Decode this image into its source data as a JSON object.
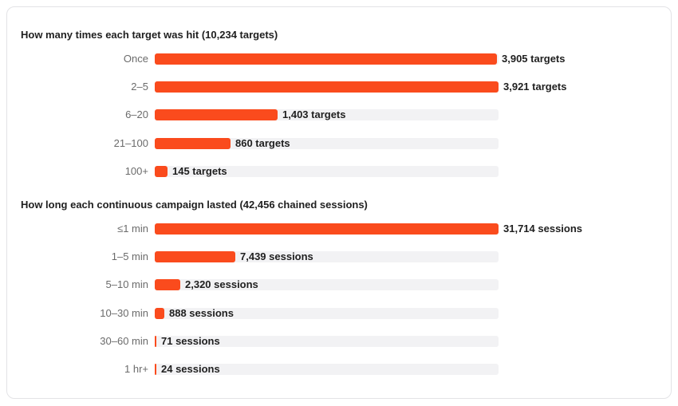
{
  "colors": {
    "bar": "#fa4b1d",
    "track": "#f2f2f4",
    "text": "#1f1f1f",
    "label": "#6b6b6b"
  },
  "chart_data": [
    {
      "type": "bar",
      "orientation": "horizontal",
      "title": "How many times each target was hit (10,234 targets)",
      "categories": [
        "Once",
        "2–5",
        "6–20",
        "21–100",
        "100+"
      ],
      "values": [
        3905,
        3921,
        1403,
        860,
        145
      ],
      "value_labels": [
        "3,905 targets",
        "3,921 targets",
        "1,403 targets",
        "860 targets",
        "145 targets"
      ],
      "xlim": [
        0,
        3921
      ]
    },
    {
      "type": "bar",
      "orientation": "horizontal",
      "title": "How long each continuous campaign lasted (42,456 chained sessions)",
      "categories": [
        "≤1 min",
        "1–5 min",
        "5–10 min",
        "10–30 min",
        "30–60 min",
        "1 hr+"
      ],
      "values": [
        31714,
        7439,
        2320,
        888,
        71,
        24
      ],
      "value_labels": [
        "31,714 sessions",
        "7,439 sessions",
        "2,320 sessions",
        "888 sessions",
        "71 sessions",
        "24 sessions"
      ],
      "xlim": [
        0,
        31714
      ]
    }
  ]
}
